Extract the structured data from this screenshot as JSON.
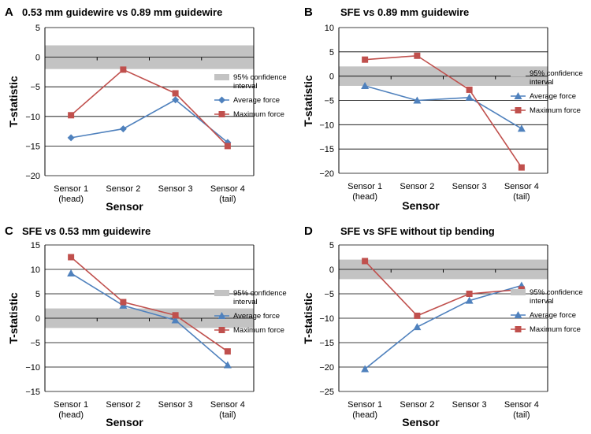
{
  "chart_data": [
    {
      "type": "line",
      "panel": "A",
      "title": "0.53 mm guidewire vs 0.89 mm guidewire",
      "xlabel": "Sensor",
      "ylabel": "T-statistic",
      "ylim": [
        -20,
        5
      ],
      "yticks": [
        5,
        0,
        -5,
        -10,
        -15,
        -20
      ],
      "categories": [
        [
          "Sensor 1",
          "(head)"
        ],
        [
          "Sensor 2"
        ],
        [
          "Sensor 3"
        ],
        [
          "Sensor 4",
          "(tail)"
        ]
      ],
      "confidence_band": [
        -2,
        2
      ],
      "grid": true,
      "legend": [
        "95% confidence",
        "interval",
        "Average force",
        "Maximum force"
      ],
      "series": [
        {
          "name": "Average force",
          "marker": "diamond",
          "color": "#4f81bd",
          "values": [
            -13.6,
            -12.1,
            -7.2,
            -14.4
          ]
        },
        {
          "name": "Maximum force",
          "marker": "square",
          "color": "#c0504d",
          "values": [
            -9.8,
            -2.1,
            -6.1,
            -15.0
          ]
        }
      ]
    },
    {
      "type": "line",
      "panel": "B",
      "title": "SFE vs 0.89 mm guidewire",
      "xlabel": "Sensor",
      "ylabel": "T-statistic",
      "ylim": [
        -20,
        10
      ],
      "yticks": [
        10,
        5,
        0,
        -5,
        -10,
        -15,
        -20
      ],
      "categories": [
        [
          "Sensor 1",
          "(head)"
        ],
        [
          "Sensor 2"
        ],
        [
          "Sensor 3"
        ],
        [
          "Sensor 4",
          "(tail)"
        ]
      ],
      "confidence_band": [
        -2,
        2
      ],
      "grid": true,
      "legend": [
        "95% confidence",
        "interval",
        "Average force",
        "Maximum force"
      ],
      "series": [
        {
          "name": "Average force",
          "marker": "triangle",
          "color": "#4f81bd",
          "values": [
            -2.0,
            -5.0,
            -4.4,
            -10.8
          ]
        },
        {
          "name": "Maximum force",
          "marker": "square",
          "color": "#c0504d",
          "values": [
            3.4,
            4.2,
            -2.8,
            -18.8
          ]
        }
      ]
    },
    {
      "type": "line",
      "panel": "C",
      "title": "SFE vs 0.53 mm guidewire",
      "xlabel": "Sensor",
      "ylabel": "T-statistic",
      "ylim": [
        -15,
        15
      ],
      "yticks": [
        15,
        10,
        5,
        0,
        -5,
        -10,
        -15
      ],
      "categories": [
        [
          "Sensor 1",
          "(head)"
        ],
        [
          "Sensor 2"
        ],
        [
          "Sensor 3"
        ],
        [
          "Sensor 4",
          "(tail)"
        ]
      ],
      "confidence_band": [
        -2,
        2
      ],
      "grid": true,
      "legend": [
        "95% confidence",
        "interval",
        "Average force",
        "Maximum force"
      ],
      "series": [
        {
          "name": "Average force",
          "marker": "triangle",
          "color": "#4f81bd",
          "values": [
            9.2,
            2.6,
            -0.4,
            -9.6
          ]
        },
        {
          "name": "Maximum force",
          "marker": "square",
          "color": "#c0504d",
          "values": [
            12.5,
            3.3,
            0.6,
            -6.8
          ]
        }
      ]
    },
    {
      "type": "line",
      "panel": "D",
      "title": "SFE vs SFE without tip bending",
      "xlabel": "Sensor",
      "ylabel": "T-statistic",
      "ylim": [
        -25,
        5
      ],
      "yticks": [
        5,
        0,
        -5,
        -10,
        -15,
        -20,
        -25
      ],
      "categories": [
        [
          "Sensor 1",
          "(head)"
        ],
        [
          "Sensor 2"
        ],
        [
          "Sensor 3"
        ],
        [
          "Sensor 4",
          "(tail)"
        ]
      ],
      "confidence_band": [
        -2,
        2
      ],
      "grid": true,
      "legend": [
        "95% confidence",
        "interval",
        "Average force",
        "Maximum force"
      ],
      "series": [
        {
          "name": "Average force",
          "marker": "triangle",
          "color": "#4f81bd",
          "values": [
            -20.4,
            -11.8,
            -6.4,
            -3.3
          ]
        },
        {
          "name": "Maximum force",
          "marker": "square",
          "color": "#c0504d",
          "values": [
            1.7,
            -9.5,
            -5.0,
            -4.1
          ]
        }
      ]
    }
  ]
}
